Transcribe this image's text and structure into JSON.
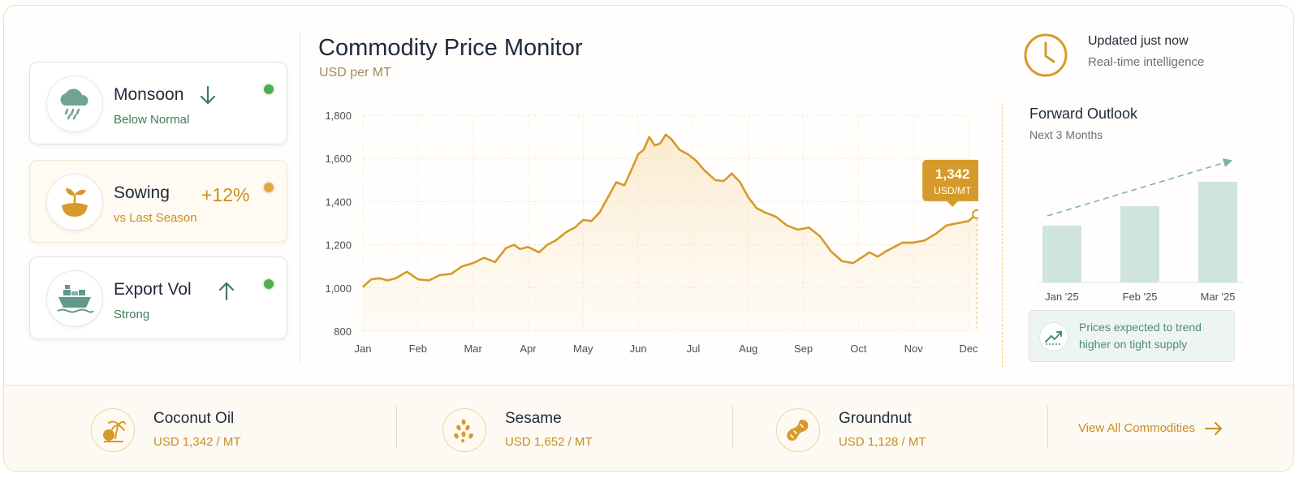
{
  "status_cards": [
    {
      "title": "Monsoon",
      "subtitle": "Below Normal",
      "icon": "rain-cloud-icon",
      "trend_icon": "arrow-down-icon",
      "dot_color": "#4caf50"
    },
    {
      "title": "Sowing",
      "subtitle": "vs Last Season",
      "value": "+12%",
      "icon": "sprout-icon",
      "dot_color": "#e3a63a"
    },
    {
      "title": "Export Vol",
      "subtitle": "Strong",
      "icon": "cargo-ship-icon",
      "trend_icon": "arrow-up-icon",
      "dot_color": "#4caf50"
    }
  ],
  "chart": {
    "title": "Commodity Price Monitor",
    "unit": "USD per MT",
    "tooltip_value": "1,342",
    "tooltip_unit": "USD/MT"
  },
  "chart_data": {
    "type": "area",
    "title": "Commodity Price Monitor",
    "ylabel": "USD per MT",
    "categories": [
      "Jan",
      "Feb",
      "Mar",
      "Apr",
      "May",
      "Jun",
      "Jul",
      "Aug",
      "Sep",
      "Oct",
      "Nov",
      "Dec"
    ],
    "y_ticks": [
      "1,800",
      "1,600",
      "1,400",
      "1,200",
      "1,000",
      "800"
    ],
    "ylim": [
      800,
      1800
    ],
    "grid": true,
    "x": [
      0,
      0.15,
      0.3,
      0.45,
      0.6,
      0.8,
      1.0,
      1.2,
      1.4,
      1.6,
      1.8,
      2.0,
      2.2,
      2.4,
      2.6,
      2.75,
      2.85,
      3.0,
      3.2,
      3.35,
      3.5,
      3.7,
      3.85,
      4.0,
      4.15,
      4.3,
      4.45,
      4.6,
      4.75,
      4.9,
      5.0,
      5.1,
      5.2,
      5.3,
      5.4,
      5.5,
      5.6,
      5.75,
      5.9,
      6.05,
      6.2,
      6.4,
      6.55,
      6.7,
      6.85,
      7.0,
      7.15,
      7.3,
      7.5,
      7.7,
      7.9,
      8.1,
      8.3,
      8.5,
      8.7,
      8.9,
      9.05,
      9.2,
      9.35,
      9.5,
      9.65,
      9.8,
      10.0,
      10.2,
      10.4,
      10.6,
      10.8,
      11.0,
      11.15
    ],
    "values": [
      1005,
      1040,
      1045,
      1035,
      1045,
      1075,
      1040,
      1035,
      1060,
      1065,
      1100,
      1115,
      1140,
      1120,
      1185,
      1200,
      1180,
      1190,
      1165,
      1200,
      1220,
      1260,
      1280,
      1315,
      1310,
      1350,
      1420,
      1490,
      1475,
      1560,
      1620,
      1640,
      1700,
      1660,
      1670,
      1710,
      1690,
      1640,
      1620,
      1590,
      1545,
      1500,
      1495,
      1530,
      1490,
      1420,
      1370,
      1350,
      1330,
      1290,
      1270,
      1280,
      1240,
      1170,
      1125,
      1115,
      1140,
      1165,
      1145,
      1170,
      1190,
      1210,
      1210,
      1220,
      1250,
      1290,
      1300,
      1310,
      1342
    ],
    "last_value": 1342,
    "legend": "none"
  },
  "status": {
    "updated": "Updated just now",
    "subtitle": "Real-time intelligence"
  },
  "forward_outlook": {
    "title": "Forward Outlook",
    "subtitle": "Next 3 Months",
    "categories": [
      "Jan '25",
      "Feb '25",
      "Mar '25"
    ],
    "values": [
      0.35,
      0.47,
      0.62
    ],
    "bar_color": "#cfe4dd",
    "arrow_color": "#7fb3a6",
    "note": "Prices expected to trend higher on tight supply",
    "note_icon": "trend-up-icon"
  },
  "commodities": [
    {
      "name": "Coconut Oil",
      "price": "USD 1,342 / MT",
      "icon": "coconut-tree-icon"
    },
    {
      "name": "Sesame",
      "price": "USD 1,652 / MT",
      "icon": "sesame-seeds-icon"
    },
    {
      "name": "Groundnut",
      "price": "USD 1,128 / MT",
      "icon": "peanut-icon"
    }
  ],
  "view_all": "View All Commodities",
  "colors": {
    "accent": "#d69a2a",
    "green": "#3f7d56",
    "teal": "#7fb3a6"
  }
}
